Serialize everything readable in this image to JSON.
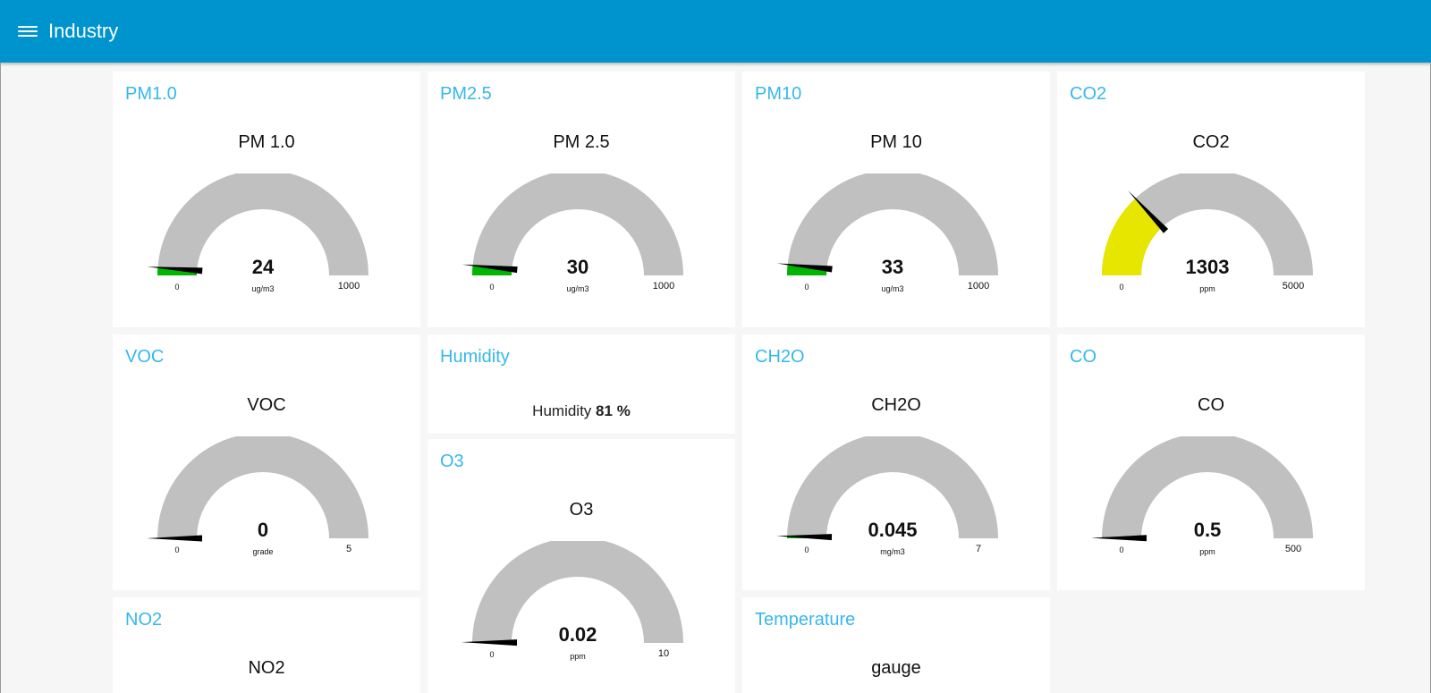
{
  "app": {
    "title": "Industry"
  },
  "colors": {
    "toolbar": "#0094ce",
    "card_title": "#36b8ec",
    "track": "#c0c0c0",
    "green": "#00b500",
    "yellow": "#e6e600",
    "needle": "#000000"
  },
  "icons": {
    "menu": "menu-icon"
  },
  "cards": {
    "pm1": {
      "title": "PM1.0",
      "label": "PM 1.0",
      "value": "24",
      "min": "0",
      "max": "1000",
      "units": "ug/m3",
      "fill": 0.024,
      "color": "#00b500"
    },
    "pm25": {
      "title": "PM2.5",
      "label": "PM 2.5",
      "value": "30",
      "min": "0",
      "max": "1000",
      "units": "ug/m3",
      "fill": 0.03,
      "color": "#00b500"
    },
    "pm10": {
      "title": "PM10",
      "label": "PM 10",
      "value": "33",
      "min": "0",
      "max": "1000",
      "units": "ug/m3",
      "fill": 0.033,
      "color": "#00b500"
    },
    "co2": {
      "title": "CO2",
      "label": "CO2",
      "value": "1303",
      "min": "0",
      "max": "5000",
      "units": "ppm",
      "fill": 0.2606,
      "color": "#e6e600"
    },
    "voc": {
      "title": "VOC",
      "label": "VOC",
      "value": "0",
      "min": "0",
      "max": "5",
      "units": "grade",
      "fill": 0,
      "color": "#00b500"
    },
    "humidity": {
      "title": "Humidity",
      "label": "Humidity",
      "value": "81",
      "units": "%"
    },
    "ch2o": {
      "title": "CH2O",
      "label": "CH2O",
      "value": "0.045",
      "min": "0",
      "max": "7",
      "units": "mg/m3",
      "fill": 0.0064,
      "color": "#00b500"
    },
    "co": {
      "title": "CO",
      "label": "CO",
      "value": "0.5",
      "min": "0",
      "max": "500",
      "units": "ppm",
      "fill": 0.001,
      "color": "#00b500"
    },
    "o3": {
      "title": "O3",
      "label": "O3",
      "value": "0.02",
      "min": "0",
      "max": "10",
      "units": "ppm",
      "fill": 0.002,
      "color": "#00b500"
    },
    "no2": {
      "title": "NO2",
      "label": "NO2"
    },
    "temperature": {
      "title": "Temperature",
      "label": "gauge"
    }
  }
}
